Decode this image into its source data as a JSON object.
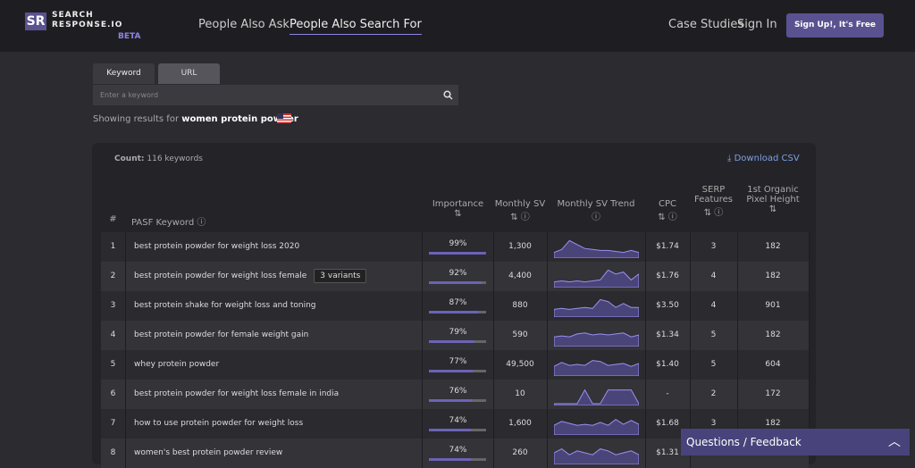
{
  "header": {
    "logo": "SR",
    "brand": "SEARCH RESPONSE.IO",
    "badge": "BETA",
    "nav": [
      "People Also Ask",
      "People Also Search For"
    ],
    "links": [
      "Case Studies",
      "Sign In"
    ],
    "cta": "Sign Up!, It's Free"
  },
  "search": {
    "tabs": [
      "Keyword",
      "URL"
    ],
    "placeholder": "Enter a keyword",
    "results_prefix": "Showing results for",
    "query": "women protein powder"
  },
  "table": {
    "count_label": "Count:",
    "count": "116 keywords",
    "download": "Download CSV",
    "columns": [
      "#",
      "PASF Keyword",
      "Importance",
      "Monthly SV",
      "Monthly SV Trend",
      "CPC",
      "SERP Features",
      "1st Organic Pixel Height"
    ],
    "rows": [
      {
        "n": "1",
        "keyword": "best protein powder for weight loss 2020",
        "importance": {
          "value": 99,
          "label": "99%"
        },
        "sv": "1,300",
        "trend": [
          20,
          35,
          80,
          60,
          40,
          35,
          30,
          30,
          25,
          20,
          30,
          20
        ],
        "cpc": "$1.74",
        "serp": "3",
        "pixel": "182"
      },
      {
        "n": "2",
        "keyword": "best protein powder for weight loss female",
        "variants": "3 variants",
        "importance": {
          "value": 92,
          "label": "92%"
        },
        "sv": "4,400",
        "trend": [
          20,
          25,
          20,
          25,
          20,
          25,
          30,
          80,
          60,
          70,
          30,
          60
        ],
        "cpc": "$1.76",
        "serp": "4",
        "pixel": "182"
      },
      {
        "n": "3",
        "keyword": "best protein shake for weight loss and toning",
        "importance": {
          "value": 87,
          "label": "87%"
        },
        "sv": "880",
        "trend": [
          30,
          35,
          30,
          35,
          40,
          35,
          80,
          70,
          40,
          60,
          40,
          40
        ],
        "cpc": "$3.50",
        "serp": "4",
        "pixel": "901"
      },
      {
        "n": "4",
        "keyword": "best protein powder for female weight gain",
        "importance": {
          "value": 79,
          "label": "79%"
        },
        "sv": "590",
        "trend": [
          40,
          45,
          40,
          55,
          60,
          50,
          55,
          50,
          55,
          60,
          40,
          50
        ],
        "cpc": "$1.34",
        "serp": "5",
        "pixel": "182"
      },
      {
        "n": "5",
        "keyword": "whey protein powder",
        "importance": {
          "value": 77,
          "label": "77%"
        },
        "sv": "49,500",
        "trend": [
          40,
          60,
          45,
          50,
          45,
          70,
          65,
          45,
          50,
          55,
          40,
          55
        ],
        "cpc": "$1.40",
        "serp": "5",
        "pixel": "604"
      },
      {
        "n": "6",
        "keyword": "best protein powder for weight loss female in india",
        "importance": {
          "value": 76,
          "label": "76%"
        },
        "sv": "10",
        "trend": [
          0,
          0,
          0,
          0,
          70,
          0,
          0,
          70,
          70,
          70,
          70,
          0
        ],
        "cpc": "-",
        "serp": "2",
        "pixel": "172"
      },
      {
        "n": "7",
        "keyword": "how to use protein powder for weight loss",
        "importance": {
          "value": 74,
          "label": "74%"
        },
        "sv": "1,600",
        "trend": [
          40,
          60,
          50,
          40,
          45,
          40,
          55,
          40,
          70,
          45,
          65,
          45
        ],
        "cpc": "$1.68",
        "serp": "3",
        "pixel": "182"
      },
      {
        "n": "8",
        "keyword": "women's best protein powder review",
        "importance": {
          "value": 74,
          "label": "74%"
        },
        "sv": "260",
        "trend": [
          50,
          70,
          40,
          60,
          50,
          40,
          70,
          60,
          40,
          50,
          60,
          40
        ],
        "cpc": "$1.31"
      }
    ]
  },
  "feedback": "Questions / Feedback"
}
